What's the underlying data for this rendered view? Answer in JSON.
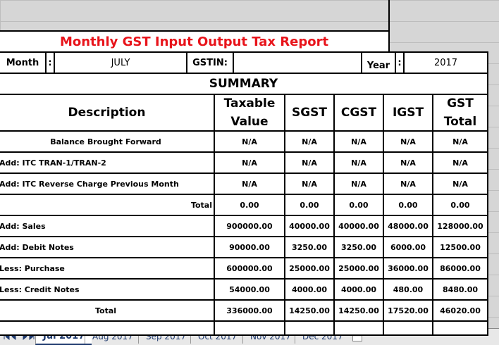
{
  "title": "Monthly GST Input Output Tax Report",
  "info": {
    "month_label": "Month",
    "month_sep": ":",
    "month": "JULY",
    "gstin_label": "GSTIN:",
    "year_label": "Year",
    "year_sep": ":",
    "year": "2017"
  },
  "summary_title": "SUMMARY",
  "table": {
    "columns": [
      "Description",
      "Taxable Value",
      "SGST",
      "CGST",
      "IGST",
      "GST Total"
    ],
    "rows": [
      [
        "Balance Brought Forward",
        "N/A",
        "N/A",
        "N/A",
        "N/A",
        "N/A"
      ],
      [
        "Add: ITC TRAN-1/TRAN-2",
        "N/A",
        "N/A",
        "N/A",
        "N/A",
        "N/A"
      ],
      [
        "Add: ITC Reverse Charge Previous Month",
        "N/A",
        "N/A",
        "N/A",
        "N/A",
        "N/A"
      ],
      [
        "Total",
        "0.00",
        "0.00",
        "0.00",
        "0.00",
        "0.00"
      ],
      [
        "Add: Sales",
        "900000.00",
        "40000.00",
        "40000.00",
        "48000.00",
        "128000.00"
      ],
      [
        "Add: Debit Notes",
        "90000.00",
        "3250.00",
        "3250.00",
        "6000.00",
        "12500.00"
      ],
      [
        "Less: Purchase",
        "600000.00",
        "25000.00",
        "25000.00",
        "36000.00",
        "86000.00"
      ],
      [
        "Less: Credit Notes",
        "54000.00",
        "4000.00",
        "4000.00",
        "480.00",
        "8480.00"
      ],
      [
        "Total",
        "336000.00",
        "14250.00",
        "14250.00",
        "17520.00",
        "46020.00"
      ]
    ]
  },
  "sheet_tabs": [
    "Jul 2017",
    "Aug 2017",
    "Sep 2017",
    "Oct 2017",
    "Nov 2017",
    "Dec 2017"
  ]
}
